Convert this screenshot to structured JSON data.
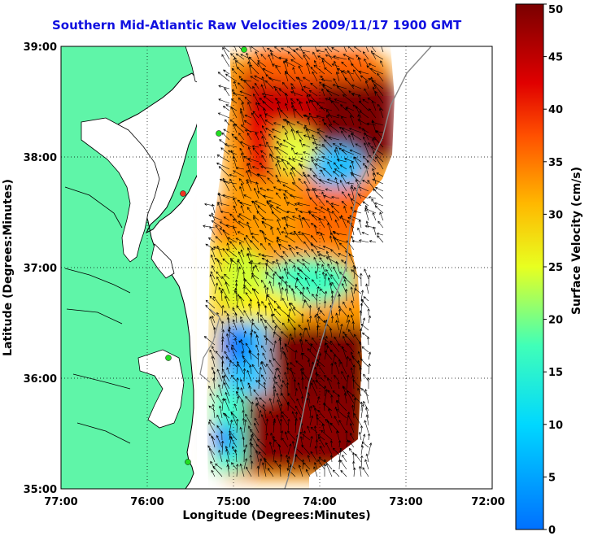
{
  "title": "Southern Mid-Atlantic Raw Velocities 2009/11/17 1900 GMT",
  "axes": {
    "xlabel": "Longitude (Degrees:Minutes)",
    "ylabel": "Latitude (Degrees:Minutes)",
    "x_ticks": [
      "77:00",
      "76:00",
      "75:00",
      "74:00",
      "73:00",
      "72:00"
    ],
    "y_ticks": [
      "39:00",
      "38:00",
      "37:00",
      "36:00",
      "35:00"
    ],
    "grid": true
  },
  "colorbar": {
    "label": "Surface Velocity (cm/s)",
    "ticks": [
      "50",
      "45",
      "40",
      "35",
      "30",
      "25",
      "20",
      "15",
      "10",
      "5",
      "0"
    ],
    "range": [
      0,
      50
    ],
    "colormap": "jet"
  },
  "colors": {
    "land": "#5ff5a8",
    "water": "#ffffff",
    "coastline": "#000000",
    "station": "#22dd22",
    "station_alt": "#ee3322",
    "title": "#1010e0",
    "arrows": "#000000"
  }
}
